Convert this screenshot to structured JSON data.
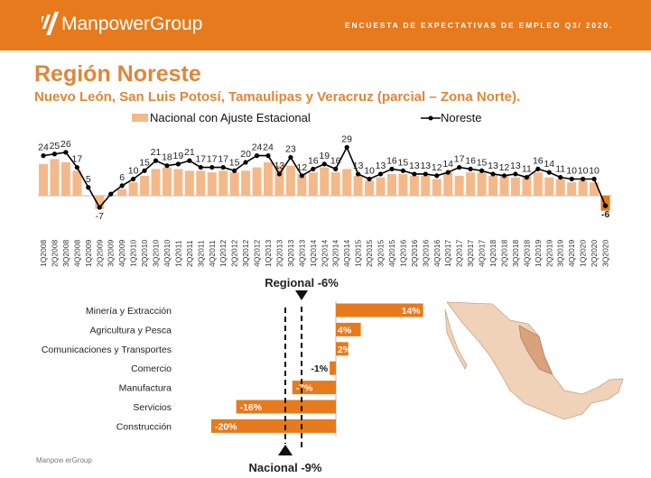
{
  "header": {
    "brand": "ManpowerGroup",
    "survey": "ENCUESTA DE EXPECTATIVAS DE EMPLEO Q3/ 2020.",
    "color": "#e67a1c"
  },
  "title": "Región Noreste",
  "subtitle": "Nuevo León, San Luis Potosí, Tamaulipas y Veracruz (parcial – Zona Norte).",
  "footer": "Manpow erGroup",
  "chart_data": [
    {
      "type": "bar+line",
      "legend": {
        "bar": "Nacional con Ajuste Estacional",
        "line": "Noreste",
        "placement": "top"
      },
      "categories": [
        "1Q2008",
        "2Q2008",
        "3Q2008",
        "4Q2008",
        "1Q2009",
        "2Q2009",
        "3Q2009",
        "4Q2009",
        "1Q2010",
        "2Q2010",
        "3Q2010",
        "4Q2010",
        "1Q2011",
        "2Q2011",
        "3Q2011",
        "4Q2011",
        "1Q2012",
        "2Q2012",
        "3Q2012",
        "4Q2012",
        "1Q2013",
        "2Q2013",
        "3Q2013",
        "4Q2013",
        "1Q2014",
        "2Q2014",
        "3Q2014",
        "4Q2014",
        "1Q2015",
        "2Q2015",
        "3Q2015",
        "4Q2015",
        "1Q2016",
        "2Q2016",
        "3Q2016",
        "4Q2016",
        "1Q2017",
        "2Q2017",
        "3Q2017",
        "4Q2017",
        "1Q2018",
        "2Q2018",
        "3Q2018",
        "4Q2018",
        "1Q2019",
        "2Q2019",
        "3Q2019",
        "4Q2019",
        "1Q2020",
        "2Q2020",
        "3Q2020"
      ],
      "series": [
        {
          "name": "Nacional con Ajuste Estacional",
          "kind": "bar",
          "color": "#f4b98a",
          "values": [
            19,
            22,
            20,
            15,
            0,
            -8,
            0,
            4,
            8,
            12,
            16,
            17,
            16,
            15,
            15,
            14,
            15,
            14,
            15,
            17,
            20,
            18,
            18,
            13,
            14,
            17,
            14,
            16,
            12,
            9,
            11,
            13,
            13,
            12,
            12,
            10,
            14,
            12,
            14,
            14,
            12,
            12,
            11,
            12,
            14,
            11,
            10,
            8,
            9,
            8,
            -9
          ]
        },
        {
          "name": "Noreste",
          "kind": "line",
          "color": "#000000",
          "values": [
            24,
            25,
            26,
            17,
            5,
            -7,
            1,
            6,
            10,
            15,
            21,
            18,
            19,
            21,
            17,
            17,
            17,
            15,
            20,
            24,
            24,
            13,
            23,
            12,
            16,
            19,
            16,
            29,
            13,
            10,
            13,
            16,
            15,
            13,
            13,
            12,
            14,
            17,
            16,
            15,
            13,
            12,
            13,
            11,
            16,
            14,
            11,
            10,
            10,
            10,
            -6
          ],
          "labels": [
            "24",
            "25",
            "26",
            "17",
            "5",
            "-7",
            "",
            "6",
            "10",
            "15",
            "21",
            "18",
            "19",
            "21",
            "17",
            "17",
            "17",
            "15",
            "20",
            "24",
            "24",
            "13",
            "23",
            "12",
            "16",
            "19",
            "16",
            "29",
            "13",
            "10",
            "13",
            "16",
            "15",
            "13",
            "13",
            "12",
            "14",
            "17",
            "16",
            "15",
            "13",
            "12",
            "13",
            "11",
            "16",
            "14",
            "11",
            "10",
            "10",
            "10",
            "-6"
          ]
        }
      ],
      "last_bar_color": "#e67a1c"
    },
    {
      "type": "bar",
      "orientation": "horizontal",
      "categories": [
        "Minería y Extracción",
        "Agricultura y Pesca",
        "Comunicaciones y Transportes",
        "Comercio",
        "Manufactura",
        "Servicios",
        "Construcción"
      ],
      "values": [
        14,
        4,
        2,
        -1,
        -7,
        -16,
        -20
      ],
      "value_labels": [
        "14%",
        "4%",
        "2%",
        "-1%",
        "-7%",
        "-16%",
        "-20%"
      ],
      "color": "#e67a1c",
      "reference_lines": [
        {
          "label": "Regional -6%",
          "value": -6
        },
        {
          "label": "Nacional -9%",
          "value": -9
        }
      ]
    }
  ]
}
